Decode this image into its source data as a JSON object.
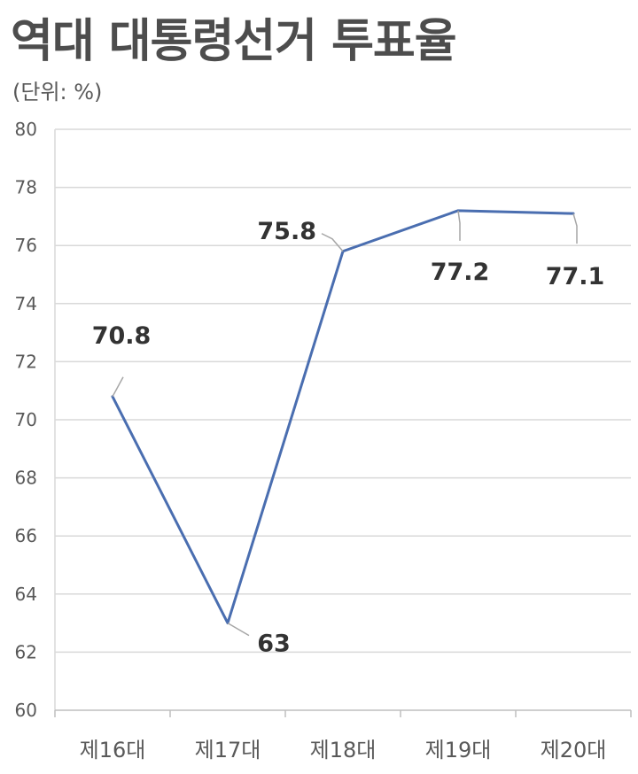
{
  "chart_data": {
    "type": "line",
    "title": "역대 대통령선거 투표율",
    "subtitle": "(단위: %)",
    "xlabel": "",
    "ylabel": "",
    "categories": [
      "제16대",
      "제17대",
      "제18대",
      "제19대",
      "제20대"
    ],
    "series": [
      {
        "values": [
          70.8,
          63,
          75.8,
          77.2,
          77.1
        ],
        "data_labels": [
          "70.8",
          "63",
          "75.8",
          "77.2",
          "77.1"
        ]
      }
    ],
    "ylim": [
      60,
      80
    ],
    "yticks": [
      60,
      62,
      64,
      66,
      68,
      70,
      72,
      74,
      76,
      78,
      80
    ],
    "grid": true,
    "legend": "none",
    "colors": {
      "line": "#4a6eb0",
      "grid": "#d9d9d9",
      "leader": "#a6a6a6"
    }
  }
}
